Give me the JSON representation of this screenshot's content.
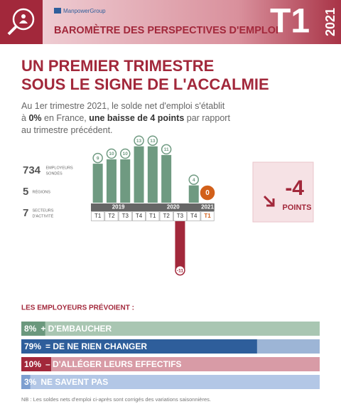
{
  "header": {
    "brand": "ManpowerGroup",
    "title": "BAROMÈTRE DES PERSPECTIVES D'EMPLOI",
    "quarter": "T1",
    "year": "2021"
  },
  "headline": [
    "UN PREMIER TRIMESTRE",
    "SOUS LE SIGNE DE L'ACCALMIE"
  ],
  "intro": [
    [
      {
        "text": "Au 1er trimestre 2021, le solde net d'emploi s'établit"
      }
    ],
    [
      {
        "text": "à "
      },
      {
        "text": "0%",
        "bold": true
      },
      {
        "text": " en France, "
      },
      {
        "text": "une baisse de 4 points",
        "bold": true
      },
      {
        "text": " par rapport"
      }
    ],
    [
      {
        "text": "au trimestre précédent."
      }
    ]
  ],
  "stats": [
    {
      "number": "734",
      "label": [
        "EMPLOYEURS",
        "SONDÉS"
      ]
    },
    {
      "number": "5",
      "label": [
        "RÉGIONS"
      ]
    },
    {
      "number": "7",
      "label": [
        "SECTEURS",
        "D'ACTIVITÉ"
      ]
    }
  ],
  "chart_data": {
    "type": "bar",
    "categories": [
      "T1",
      "T2",
      "T3",
      "T4",
      "T1",
      "T2",
      "T3",
      "T4",
      "T1"
    ],
    "groups": [
      "2019",
      "2020",
      "2021"
    ],
    "values": [
      9,
      10,
      10,
      13,
      13,
      11,
      -11,
      4,
      0
    ],
    "color": "#6f9a81",
    "negative_color": "#a2283b",
    "zero_color": "#d2601a"
  },
  "change": {
    "value": -4,
    "label": "POINTS"
  },
  "forecast": {
    "title": "LES EMPLOYEURS PRÉVOIENT :",
    "rows": [
      {
        "value": 8,
        "value_label": "8%",
        "text": "+ D'EMBAUCHER",
        "color": "#6b987d",
        "background": "#a9c6b2"
      },
      {
        "value": 79,
        "value_label": "79%",
        "text": "= DE NE RIEN CHANGER",
        "color": "#2e5e9b",
        "background": "#9db5d6"
      },
      {
        "value": 10,
        "value_label": "10%",
        "text": "– D'ALLÉGER LEURS EFFECTIFS",
        "color": "#a2283b",
        "background": "#d89ba6"
      },
      {
        "value": 3,
        "value_label": "3%",
        "text": "NE SAVENT PAS",
        "color": "#7d9fd0",
        "background": "#b3c7e6"
      }
    ]
  },
  "footnote": "NB : Les soldes nets d'emploi ci-après sont corrigés des variations saisonnières."
}
